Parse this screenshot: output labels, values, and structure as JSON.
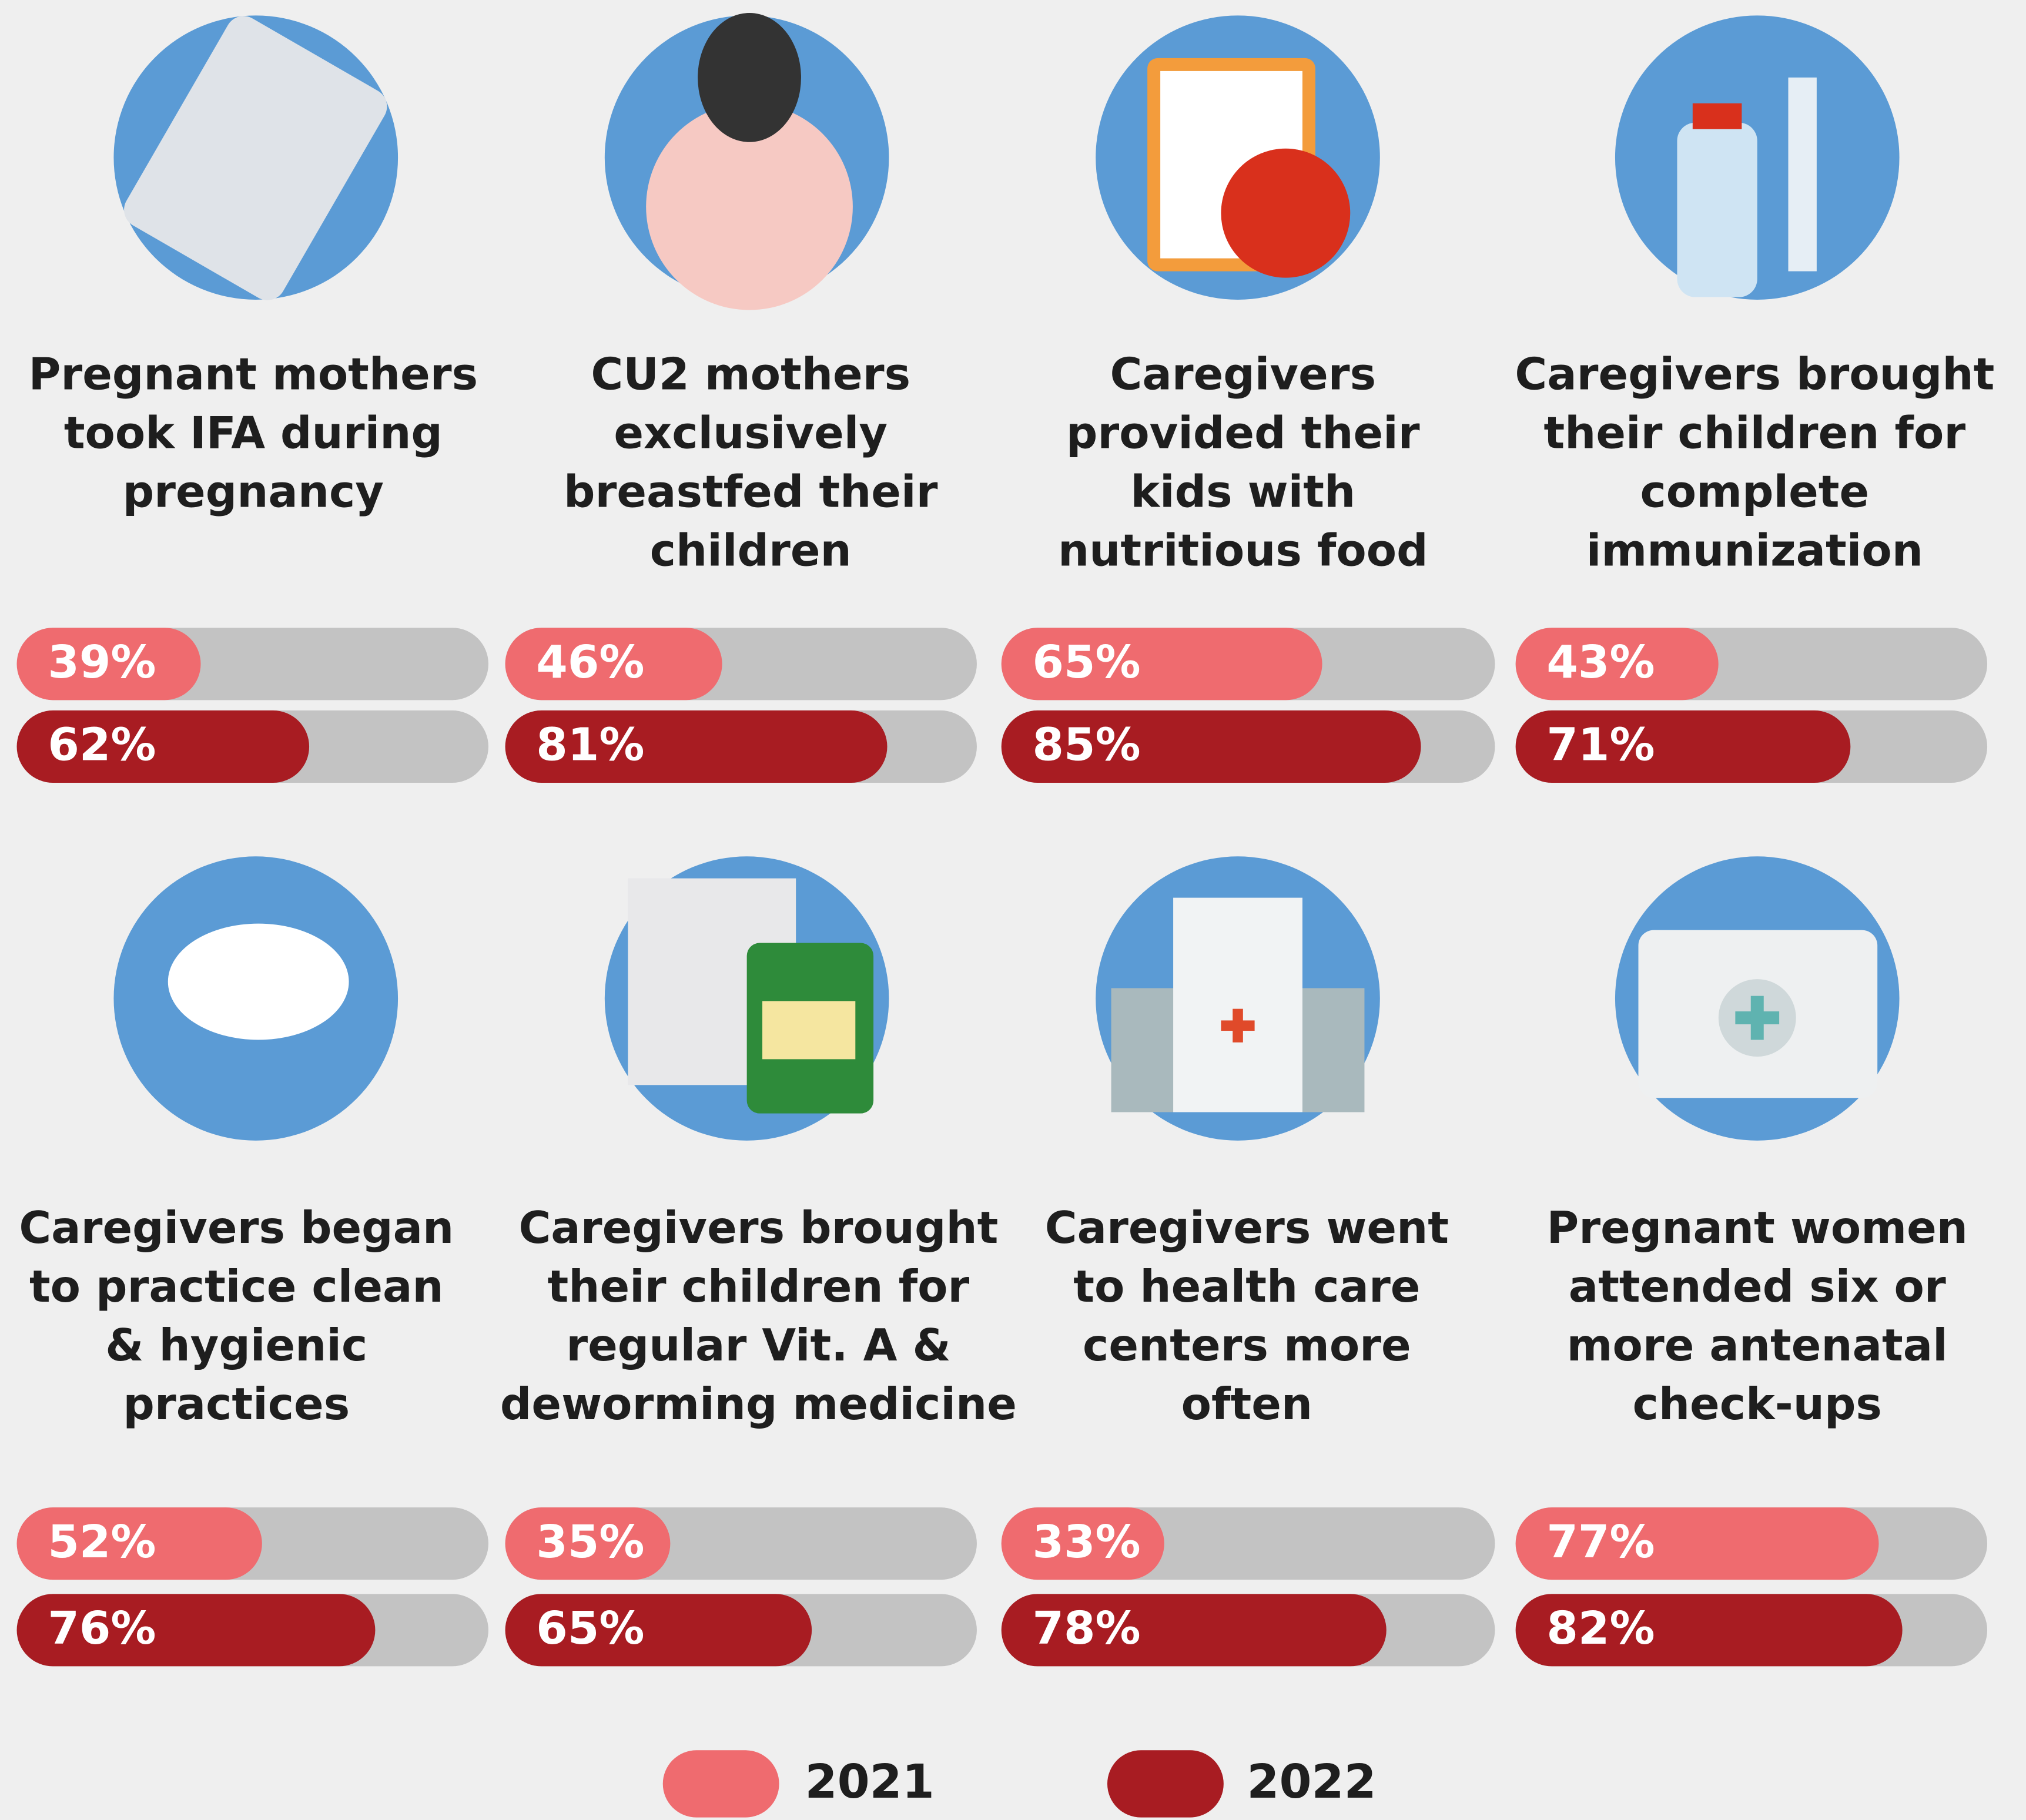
{
  "chart_data": [
    {
      "type": "bar",
      "title": [
        "Pregnant mothers",
        "took IFA during",
        "pregnancy"
      ],
      "xlim": [
        0,
        100
      ],
      "series": [
        {
          "values": [
            39
          ],
          "value_labels": [
            "39%"
          ]
        },
        {
          "values": [
            62
          ],
          "value_labels": [
            "62%"
          ]
        }
      ]
    },
    {
      "type": "bar",
      "title": [
        "CU2 mothers",
        "exclusively",
        "breastfed their",
        "children"
      ],
      "xlim": [
        0,
        100
      ],
      "series": [
        {
          "values": [
            46
          ],
          "value_labels": [
            "46%"
          ]
        },
        {
          "values": [
            81
          ],
          "value_labels": [
            "81%"
          ]
        }
      ]
    },
    {
      "type": "bar",
      "title": [
        "Caregivers",
        "provided their",
        "kids with",
        "nutritious food"
      ],
      "xlim": [
        0,
        100
      ],
      "series": [
        {
          "values": [
            65
          ],
          "value_labels": [
            "65%"
          ]
        },
        {
          "values": [
            85
          ],
          "value_labels": [
            "85%"
          ]
        }
      ]
    },
    {
      "type": "bar",
      "title": [
        "Caregivers brought",
        "their children for",
        "complete",
        "immunization"
      ],
      "xlim": [
        0,
        100
      ],
      "series": [
        {
          "values": [
            43
          ],
          "value_labels": [
            "43%"
          ]
        },
        {
          "values": [
            71
          ],
          "value_labels": [
            "71%"
          ]
        }
      ]
    },
    {
      "type": "bar",
      "title": [
        "Caregivers began",
        "to practice clean",
        "& hygienic",
        "practices"
      ],
      "xlim": [
        0,
        100
      ],
      "series": [
        {
          "values": [
            52
          ],
          "value_labels": [
            "52%"
          ]
        },
        {
          "values": [
            76
          ],
          "value_labels": [
            "76%"
          ]
        }
      ]
    },
    {
      "type": "bar",
      "title": [
        "Caregivers brought",
        "their children for",
        "regular Vit. A &",
        "deworming medicine"
      ],
      "xlim": [
        0,
        100
      ],
      "series": [
        {
          "values": [
            35
          ],
          "value_labels": [
            "35%"
          ]
        },
        {
          "values": [
            65
          ],
          "value_labels": [
            "65%"
          ]
        }
      ]
    },
    {
      "type": "bar",
      "title": [
        "Caregivers went",
        "to health care",
        "centers more",
        "often"
      ],
      "xlim": [
        0,
        100
      ],
      "series": [
        {
          "values": [
            33
          ],
          "value_labels": [
            "33%"
          ]
        },
        {
          "values": [
            78
          ],
          "value_labels": [
            "78%"
          ]
        }
      ]
    },
    {
      "type": "bar",
      "title": [
        "Pregnant women",
        "attended six or",
        "more antenatal",
        "check-ups"
      ],
      "xlim": [
        0,
        100
      ],
      "series": [
        {
          "values": [
            77
          ],
          "value_labels": [
            "77%"
          ]
        },
        {
          "values": [
            82
          ],
          "value_labels": [
            "82%"
          ]
        }
      ]
    }
  ],
  "legend": [
    {
      "name": "2021",
      "color": "#ef6b6f"
    },
    {
      "name": "2022",
      "color": "#a81c22"
    }
  ]
}
